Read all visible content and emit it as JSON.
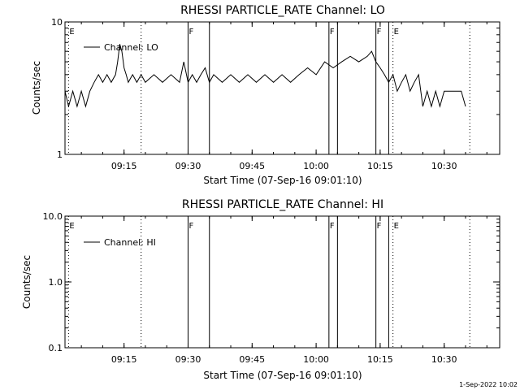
{
  "footer_timestamp": "1-Sep-2022 10:02",
  "chart_data": [
    {
      "type": "line",
      "title": "RHESSI PARTICLE_RATE Channel: LO",
      "xlabel": "Start Time (07-Sep-16 09:01:10)",
      "ylabel": "Counts/sec",
      "y_scale": "log",
      "ylim": [
        1,
        10
      ],
      "y_ticks": [
        "1",
        "10"
      ],
      "xlim": [
        "09:01:10",
        "10:43:00"
      ],
      "x_ticks": [
        "09:15",
        "09:30",
        "09:45",
        "10:00",
        "10:15",
        "10:30"
      ],
      "legend": "top-left",
      "series": [
        {
          "name": "Channel: LO",
          "x": [
            "09:01:10",
            "09:02",
            "09:03",
            "09:04",
            "09:05",
            "09:06",
            "09:07",
            "09:08",
            "09:09",
            "09:10",
            "09:11",
            "09:12",
            "09:13",
            "09:13:30",
            "09:14",
            "09:14:30",
            "09:15",
            "09:15:30",
            "09:16",
            "09:17",
            "09:18",
            "09:19",
            "09:20",
            "09:22",
            "09:24",
            "09:26",
            "09:28",
            "09:29",
            "09:30",
            "09:31",
            "09:32",
            "09:33",
            "09:34",
            "09:35",
            "09:36",
            "09:38",
            "09:40",
            "09:42",
            "09:44",
            "09:46",
            "09:48",
            "09:50",
            "09:52",
            "09:54",
            "09:56",
            "09:58",
            "10:00",
            "10:02",
            "10:04",
            "10:06",
            "10:08",
            "10:10",
            "10:12",
            "10:13",
            "10:14",
            "10:15",
            "10:16",
            "10:17",
            "10:18",
            "10:19",
            "10:20",
            "10:21",
            "10:22",
            "10:23",
            "10:24",
            "10:25",
            "10:26",
            "10:27",
            "10:28",
            "10:29",
            "10:30",
            "10:32",
            "10:34",
            "10:35"
          ],
          "y": [
            3.0,
            2.3,
            3.0,
            2.3,
            3.0,
            2.3,
            3.0,
            3.5,
            4.0,
            3.5,
            4.0,
            3.5,
            4.0,
            5.0,
            6.8,
            6.0,
            4.5,
            4.0,
            3.5,
            4.0,
            3.5,
            4.0,
            3.5,
            4.0,
            3.5,
            4.0,
            3.5,
            5.0,
            3.5,
            4.0,
            3.5,
            4.0,
            4.5,
            3.5,
            4.0,
            3.5,
            4.0,
            3.5,
            4.0,
            3.5,
            4.0,
            3.5,
            4.0,
            3.5,
            4.0,
            4.5,
            4.0,
            5.0,
            4.5,
            5.0,
            5.5,
            5.0,
            5.5,
            6.0,
            5.0,
            4.5,
            4.0,
            3.5,
            4.0,
            3.0,
            3.5,
            4.0,
            3.0,
            3.5,
            4.0,
            2.3,
            3.0,
            2.3,
            3.0,
            2.3,
            3.0,
            3.0,
            3.0,
            2.3
          ]
        }
      ],
      "markers": [
        {
          "time": "09:02",
          "label": "E",
          "style": "dotted"
        },
        {
          "time": "09:19",
          "label": "",
          "style": "dotted"
        },
        {
          "time": "09:30",
          "label": "F",
          "style": "solid"
        },
        {
          "time": "09:35",
          "label": "",
          "style": "solid"
        },
        {
          "time": "10:03",
          "label": "F",
          "style": "solid"
        },
        {
          "time": "10:05",
          "label": "",
          "style": "solid"
        },
        {
          "time": "10:14",
          "label": "F",
          "style": "solid"
        },
        {
          "time": "10:17",
          "label": "",
          "style": "solid"
        },
        {
          "time": "10:18",
          "label": "E",
          "style": "dotted"
        },
        {
          "time": "10:36",
          "label": "",
          "style": "dotted"
        }
      ]
    },
    {
      "type": "line",
      "title": "RHESSI PARTICLE_RATE Channel: HI",
      "xlabel": "Start Time (07-Sep-16 09:01:10)",
      "ylabel": "Counts/sec",
      "y_scale": "log",
      "ylim": [
        0.1,
        10
      ],
      "y_ticks": [
        "0.1",
        "1.0",
        "10.0"
      ],
      "xlim": [
        "09:01:10",
        "10:43:00"
      ],
      "x_ticks": [
        "09:15",
        "09:30",
        "09:45",
        "10:00",
        "10:15",
        "10:30"
      ],
      "legend": "top-left",
      "series": [
        {
          "name": "Channel: HI",
          "x": [],
          "y": []
        }
      ],
      "markers": [
        {
          "time": "09:02",
          "label": "E",
          "style": "dotted"
        },
        {
          "time": "09:19",
          "label": "",
          "style": "dotted"
        },
        {
          "time": "09:30",
          "label": "F",
          "style": "solid"
        },
        {
          "time": "09:35",
          "label": "",
          "style": "solid"
        },
        {
          "time": "10:03",
          "label": "F",
          "style": "solid"
        },
        {
          "time": "10:05",
          "label": "",
          "style": "solid"
        },
        {
          "time": "10:14",
          "label": "F",
          "style": "solid"
        },
        {
          "time": "10:17",
          "label": "",
          "style": "solid"
        },
        {
          "time": "10:18",
          "label": "E",
          "style": "dotted"
        },
        {
          "time": "10:36",
          "label": "",
          "style": "dotted"
        }
      ]
    }
  ]
}
